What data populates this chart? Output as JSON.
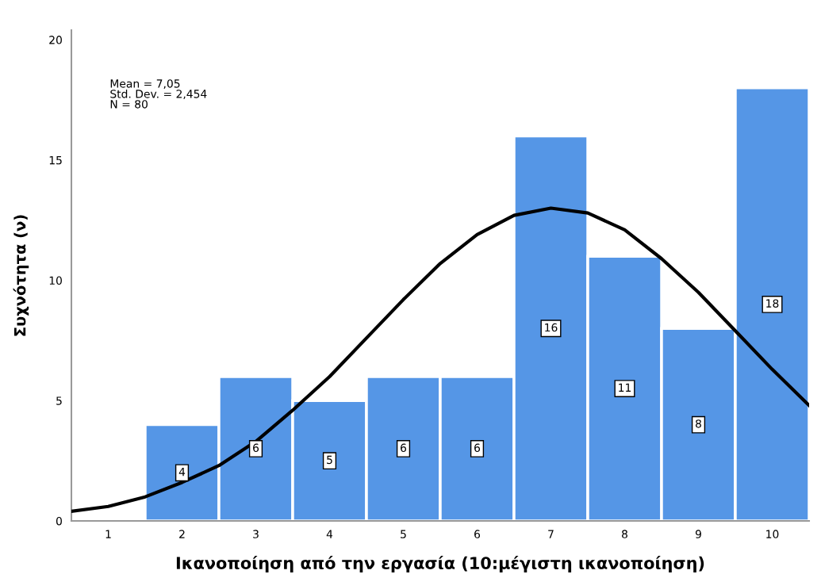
{
  "chart_data": {
    "type": "histogram",
    "xlabel": "Ικανοποίηση από την εργασία (10:μέγιστη ικανοποίηση)",
    "ylabel": "Συχνότητα (ν)",
    "bins": [
      0.5,
      1.5,
      2.5,
      3.5,
      4.5,
      5.5,
      6.5,
      7.5,
      8.5,
      9.5,
      10.5
    ],
    "values": [
      0,
      4,
      6,
      5,
      6,
      6,
      16,
      11,
      8,
      18
    ],
    "value_labels": [
      null,
      "4",
      "6",
      "5",
      "6",
      "6",
      "16",
      "11",
      "8",
      "18"
    ],
    "color": "#5596e6",
    "series": [
      {
        "type": "line",
        "color": "#000000",
        "x": [
          0.5,
          1,
          1.5,
          2,
          2.5,
          3,
          3.5,
          4,
          4.5,
          5,
          5.5,
          6,
          6.5,
          7,
          7.5,
          8,
          8.5,
          9,
          9.5,
          10,
          10.5
        ],
        "values": [
          0.4,
          0.6,
          1.0,
          1.6,
          2.3,
          3.3,
          4.6,
          6.0,
          7.6,
          9.2,
          10.7,
          11.9,
          12.7,
          13.0,
          12.8,
          12.1,
          10.9,
          9.5,
          7.9,
          6.3,
          4.8
        ]
      }
    ],
    "xlim": [
      0.5,
      10.5
    ],
    "xticks": [
      1,
      2,
      3,
      4,
      5,
      6,
      7,
      8,
      9,
      10
    ],
    "ylim": [
      0,
      20.4
    ],
    "yticks": [
      0,
      5,
      10,
      15,
      20
    ],
    "annotations": [
      "Mean = 7,05",
      "Std. Dev. = 2,454",
      "N = 80"
    ],
    "grid": false
  }
}
